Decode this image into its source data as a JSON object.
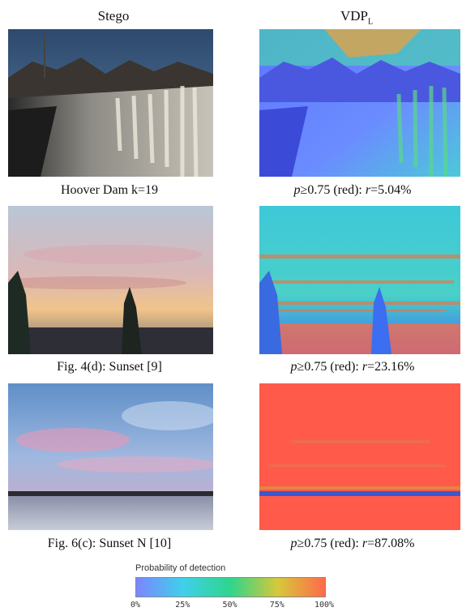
{
  "headers": {
    "left": "Stego",
    "right_main": "VDP",
    "right_sub": "L"
  },
  "rows": [
    {
      "left_caption": "Hoover Dam k=19",
      "right_caption": {
        "p": "p",
        "rel": "≥0.75 (red): ",
        "r": "r",
        "value": "=5.04%"
      }
    },
    {
      "left_caption": "Fig. 4(d): Sunset [9]",
      "right_caption": {
        "p": "p",
        "rel": "≥0.75 (red): ",
        "r": "r",
        "value": "=23.16%"
      }
    },
    {
      "left_caption": "Fig. 6(c): Sunset N [10]",
      "right_caption": {
        "p": "p",
        "rel": "≥0.75 (red): ",
        "r": "r",
        "value": "=87.08%"
      }
    }
  ],
  "colorbar": {
    "title": "Probability of detection",
    "ticks": [
      "0%",
      "25%",
      "50%",
      "75%",
      "100%"
    ],
    "colors": [
      "#7b86ff",
      "#3fd0ea",
      "#2ed58c",
      "#d6c83a",
      "#ff6a4a"
    ]
  }
}
